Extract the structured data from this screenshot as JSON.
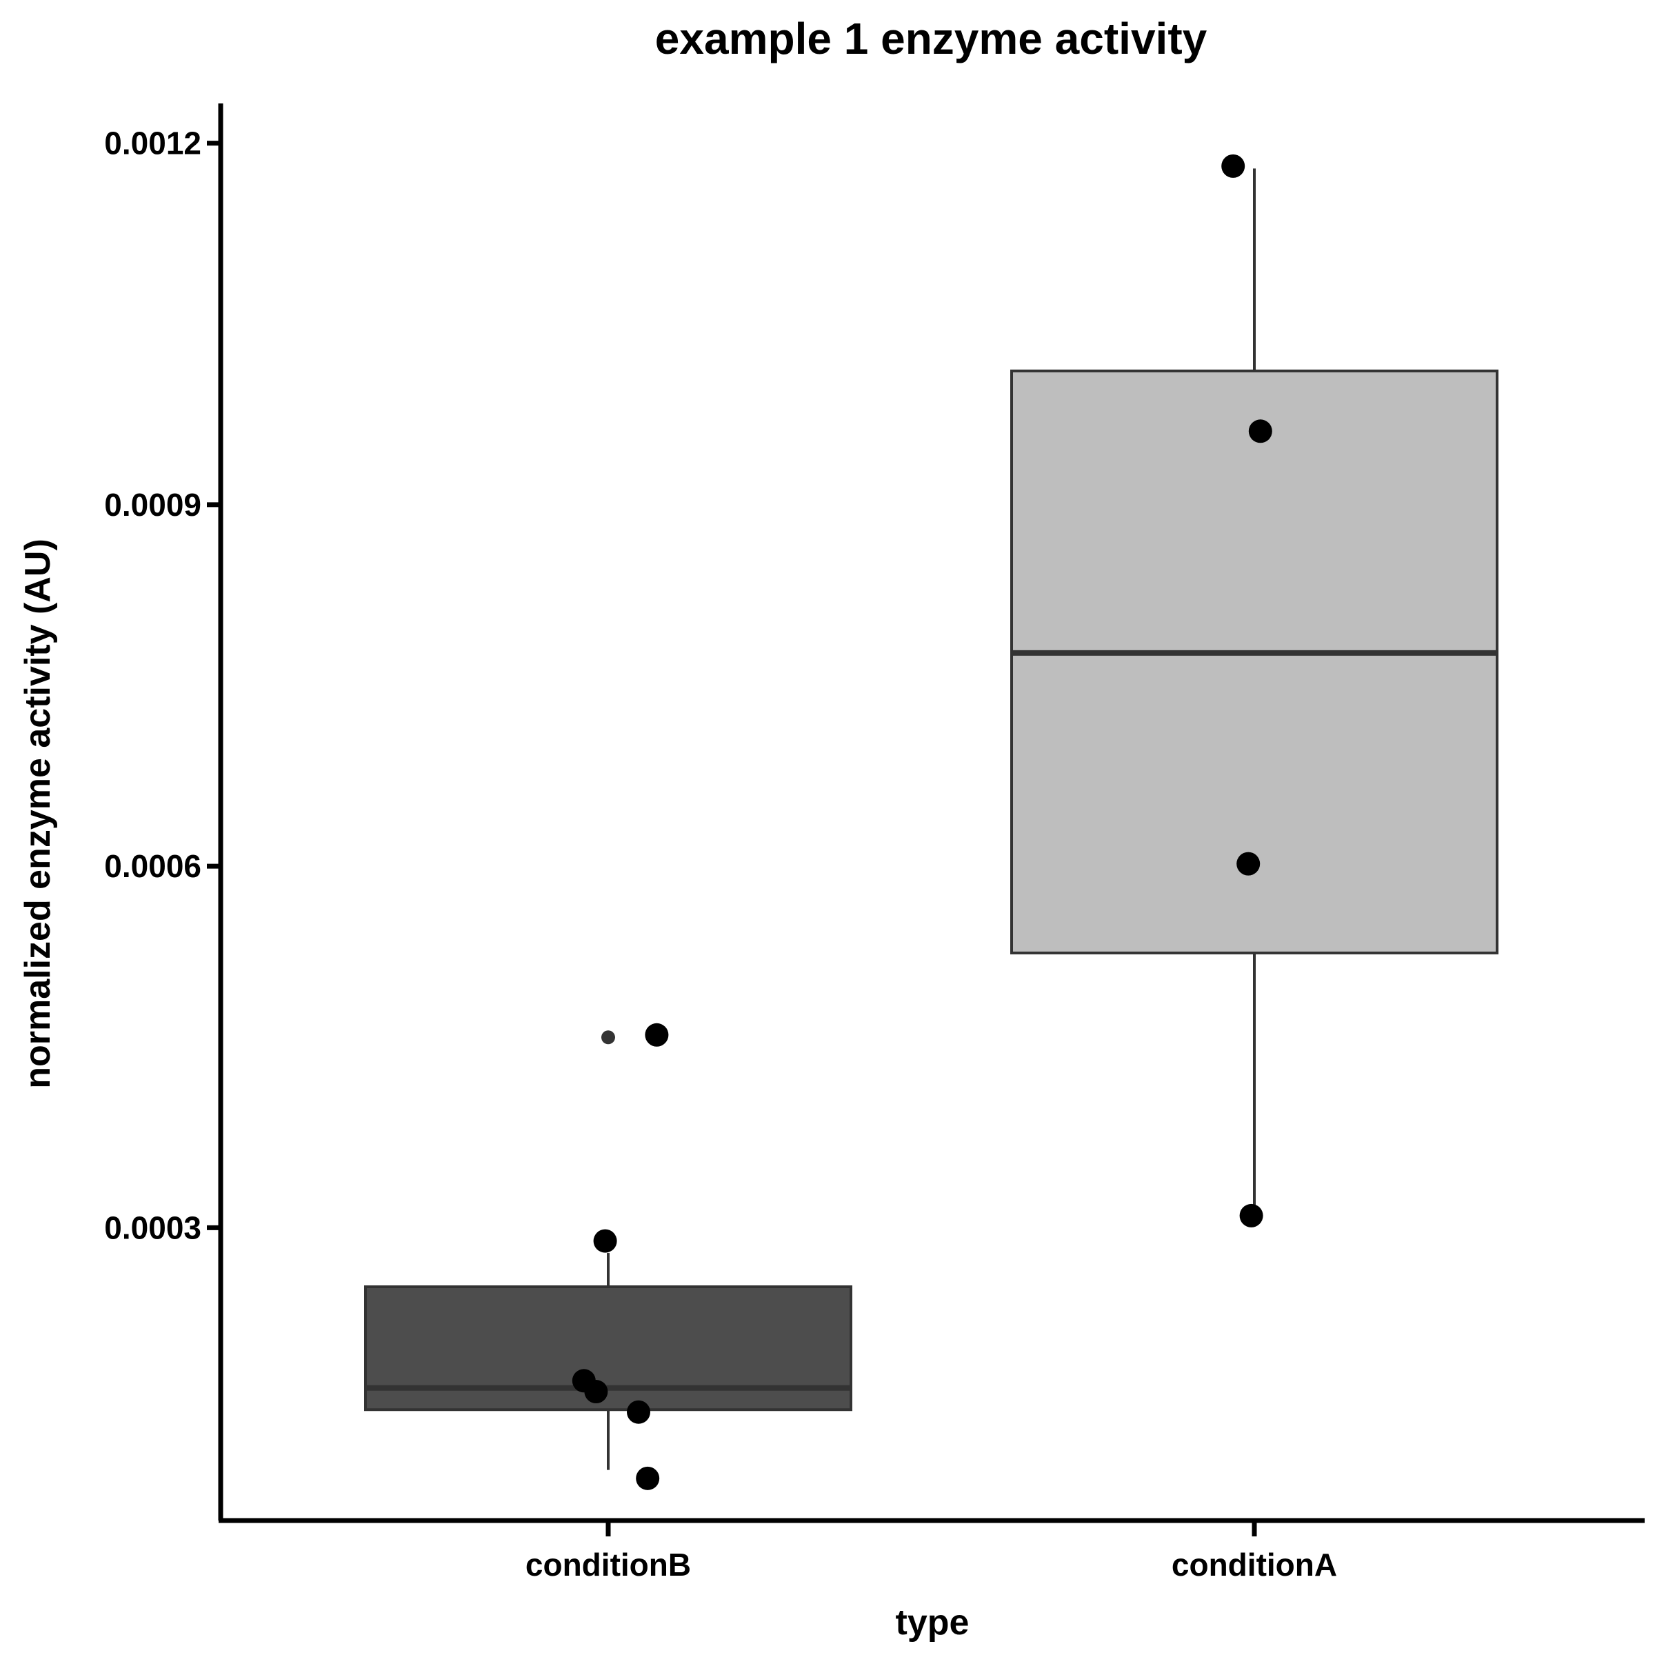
{
  "chart_data": {
    "type": "box",
    "title": "example 1 enzyme activity",
    "xlabel": "type",
    "ylabel": "normalized enzyme activity (AU)",
    "categories": [
      "conditionB",
      "conditionA"
    ],
    "yticks": [
      0.0003,
      0.0006,
      0.0009,
      0.0012
    ],
    "ytick_labels": [
      "0.0003",
      "0.0006",
      "0.0009",
      "0.0012"
    ],
    "ylim": [
      5.7e-05,
      0.001233
    ],
    "grid": false,
    "legend": "none",
    "boxes": [
      {
        "category": "conditionB",
        "fill": "#4d4d4d",
        "whisker_low": 9.9e-05,
        "q1": 0.000149,
        "median": 0.000167,
        "q3": 0.000251,
        "whisker_high": 0.000279,
        "outliers": [
          0.000458
        ],
        "points": [
          {
            "offset": -0.04,
            "y": 0.000173
          },
          {
            "offset": -0.02,
            "y": 0.000164
          },
          {
            "offset": -0.005,
            "y": 0.000289
          },
          {
            "offset": 0.05,
            "y": 0.000147
          },
          {
            "offset": 0.065,
            "y": 9.2e-05
          },
          {
            "offset": 0.08,
            "y": 0.00046
          }
        ]
      },
      {
        "category": "conditionA",
        "fill": "#bebebe",
        "whisker_low": 0.000311,
        "q1": 0.000528,
        "median": 0.000777,
        "q3": 0.001011,
        "whisker_high": 0.001179,
        "outliers": [],
        "points": [
          {
            "offset": -0.035,
            "y": 0.001181
          },
          {
            "offset": 0.01,
            "y": 0.000961
          },
          {
            "offset": -0.01,
            "y": 0.000602
          },
          {
            "offset": -0.005,
            "y": 0.00031
          }
        ]
      }
    ]
  }
}
